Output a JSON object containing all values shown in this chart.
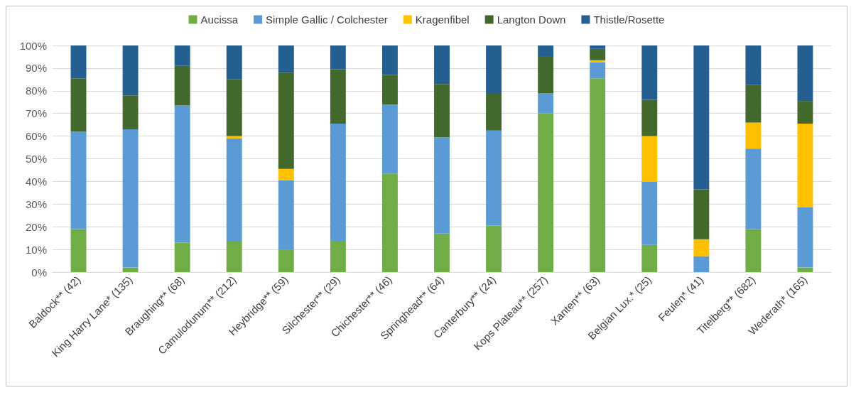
{
  "chart_data": {
    "type": "bar",
    "stacked": true,
    "categories": [
      "Baldock** (42)",
      "King Harry Lane* (135)",
      "Braughing** (68)",
      "Camulodunum** (212)",
      "Heybridge** (59)",
      "Silchester** (29)",
      "Chichester** (46)",
      "Springhead** (64)",
      "Canterbury** (24)",
      "Kops Plateau** (257)",
      "Xanten** (63)",
      "Belgian Lux.* (25)",
      "Feulen* (41)",
      "Titelberg** (682)",
      "Wederath* (165)"
    ],
    "series": [
      {
        "name": "Aucissa",
        "color": "#70ad47",
        "values": [
          19,
          2,
          13,
          13.5,
          10,
          13.5,
          43.5,
          17,
          20.5,
          70,
          85.5,
          12,
          0,
          19,
          2
        ]
      },
      {
        "name": "Simple Gallic / Colchester",
        "color": "#5b9bd5",
        "values": [
          43,
          61,
          60.5,
          45.5,
          30.5,
          52,
          30.5,
          42.5,
          42,
          9,
          7,
          28,
          7,
          35.5,
          26.5
        ]
      },
      {
        "name": "Kragenfibel",
        "color": "#ffc000",
        "values": [
          0,
          0,
          0,
          1,
          5,
          0,
          0,
          0,
          0,
          0,
          1,
          20,
          7.5,
          11.5,
          37
        ]
      },
      {
        "name": "Langton Down",
        "color": "#43682b",
        "values": [
          23.5,
          15,
          17.5,
          25,
          42.5,
          24,
          13,
          23.5,
          16.5,
          16,
          5,
          16,
          22,
          16.5,
          10
        ]
      },
      {
        "name": "Thistle/Rosette",
        "color": "#255e91",
        "values": [
          14.5,
          22,
          9,
          15,
          12,
          10.5,
          13,
          17,
          21,
          5,
          1.5,
          24,
          63.5,
          17.5,
          24.5
        ]
      }
    ],
    "ylim": [
      0,
      100
    ],
    "yticks": [
      {
        "value": 0,
        "label": "0%"
      },
      {
        "value": 10,
        "label": "10%"
      },
      {
        "value": 20,
        "label": "20%"
      },
      {
        "value": 30,
        "label": "30%"
      },
      {
        "value": 40,
        "label": "40%"
      },
      {
        "value": 50,
        "label": "50%"
      },
      {
        "value": 60,
        "label": "60%"
      },
      {
        "value": 70,
        "label": "70%"
      },
      {
        "value": 80,
        "label": "80%"
      },
      {
        "value": 90,
        "label": "90%"
      },
      {
        "value": 100,
        "label": "100%"
      }
    ],
    "grid": "y",
    "legend": "top"
  }
}
